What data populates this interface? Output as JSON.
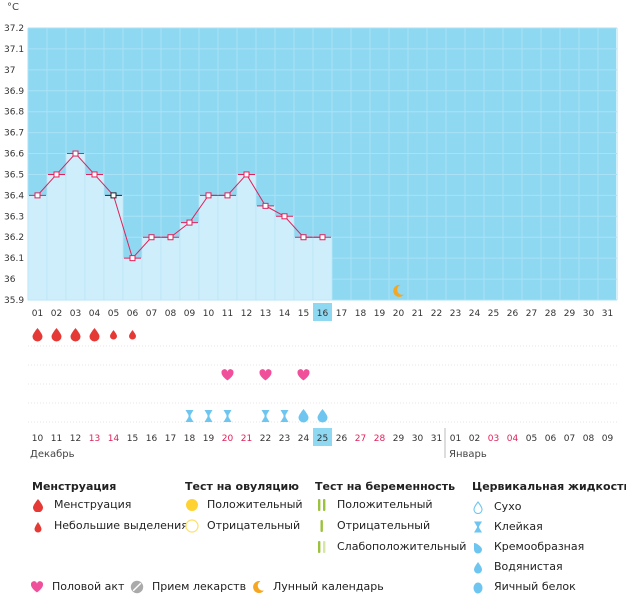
{
  "chart_data": {
    "type": "line",
    "y_unit": "°C",
    "ylim": [
      35.9,
      37.25
    ],
    "y_ticks": [
      "37.2",
      "37.1",
      "37",
      "36.9",
      "36.8",
      "36.7",
      "36.6",
      "36.5",
      "36.4",
      "36.3",
      "36.2",
      "36.1",
      "36",
      "35.9"
    ],
    "cycle_days": [
      "01",
      "02",
      "03",
      "04",
      "05",
      "06",
      "07",
      "08",
      "09",
      "10",
      "11",
      "12",
      "13",
      "14",
      "15",
      "16",
      "17",
      "18",
      "19",
      "20",
      "21",
      "22",
      "23",
      "24",
      "25",
      "26",
      "27",
      "28",
      "29",
      "30",
      "31"
    ],
    "current_cycle_day": 16,
    "temperatures": [
      36.4,
      36.5,
      36.6,
      36.5,
      36.4,
      36.1,
      36.2,
      36.2,
      36.27,
      36.4,
      36.4,
      36.5,
      36.35,
      36.3,
      36.2,
      36.2
    ],
    "highlighted_point_index": 4,
    "grid": true,
    "background_color": "#8fd8f2",
    "fill_color": "#cfeefb",
    "line_color": "#e0215a",
    "calendar_days": [
      {
        "label": "10",
        "weekend": false
      },
      {
        "label": "11",
        "weekend": false
      },
      {
        "label": "12",
        "weekend": false
      },
      {
        "label": "13",
        "weekend": true
      },
      {
        "label": "14",
        "weekend": true
      },
      {
        "label": "15",
        "weekend": false
      },
      {
        "label": "16",
        "weekend": false
      },
      {
        "label": "17",
        "weekend": false
      },
      {
        "label": "18",
        "weekend": false
      },
      {
        "label": "19",
        "weekend": false
      },
      {
        "label": "20",
        "weekend": true
      },
      {
        "label": "21",
        "weekend": true
      },
      {
        "label": "22",
        "weekend": false
      },
      {
        "label": "23",
        "weekend": false
      },
      {
        "label": "24",
        "weekend": false
      },
      {
        "label": "25",
        "weekend": false
      },
      {
        "label": "26",
        "weekend": false
      },
      {
        "label": "27",
        "weekend": true
      },
      {
        "label": "28",
        "weekend": true
      },
      {
        "label": "29",
        "weekend": false
      },
      {
        "label": "30",
        "weekend": false
      },
      {
        "label": "31",
        "weekend": false
      },
      {
        "label": "01",
        "weekend": false
      },
      {
        "label": "02",
        "weekend": false
      },
      {
        "label": "03",
        "weekend": true
      },
      {
        "label": "04",
        "weekend": true
      },
      {
        "label": "05",
        "weekend": false
      },
      {
        "label": "06",
        "weekend": false
      },
      {
        "label": "07",
        "weekend": false
      },
      {
        "label": "08",
        "weekend": false
      },
      {
        "label": "09",
        "weekend": false
      }
    ],
    "today_calendar_index": 15,
    "months": [
      {
        "label": "Декабрь",
        "start_index": 0
      },
      {
        "label": "Январь",
        "start_index": 22
      }
    ],
    "menstruation": [
      "heavy",
      "heavy",
      "heavy",
      "heavy",
      "light",
      "light"
    ],
    "intercourse_days": [
      11,
      13,
      15
    ],
    "fluid_marks": [
      {
        "day": 9,
        "kind": "sticky"
      },
      {
        "day": 10,
        "kind": "sticky"
      },
      {
        "day": 11,
        "kind": "sticky"
      },
      {
        "day": 13,
        "kind": "sticky"
      },
      {
        "day": 14,
        "kind": "sticky"
      },
      {
        "day": 15,
        "kind": "watery"
      },
      {
        "day": 16,
        "kind": "watery"
      }
    ],
    "moon_day": 20
  },
  "legend": {
    "menstruation": {
      "title": "Менструация",
      "items": [
        "Менструация",
        "Небольшие выделения"
      ]
    },
    "ovulation": {
      "title": "Тест на овуляцию",
      "items": [
        "Положительный",
        "Отрицательный"
      ]
    },
    "pregnancy": {
      "title": "Тест на беременность",
      "items": [
        "Положительный",
        "Отрицательный",
        "Слабоположительный"
      ]
    },
    "fluid": {
      "title": "Цервикальная жидкость",
      "items": [
        "Сухо",
        "Клейкая",
        "Кремообразная",
        "Водянистая",
        "Яичный белок"
      ]
    },
    "bottom": [
      "Половой акт",
      "Прием лекарств",
      "Лунный календарь"
    ]
  },
  "colors": {
    "red": "#e0215a",
    "drop_red": "#e53935",
    "heart": "#f0509a",
    "fluid_blue": "#6ec6f0",
    "ovu_positive": "#ffd233",
    "ovu_negative": "#ffe066",
    "preg_green": "#9bc23c",
    "preg_light": "#d6e6a6",
    "moon": "#f5a623",
    "pill": "#aaaaaa"
  }
}
